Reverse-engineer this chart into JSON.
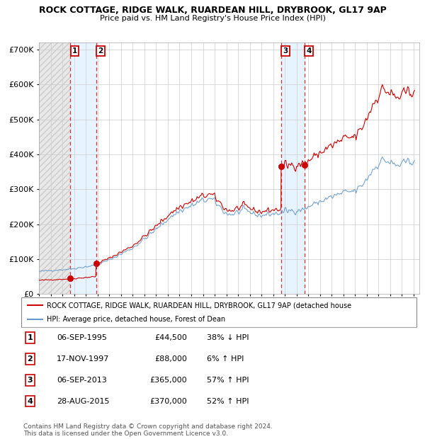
{
  "title": "ROCK COTTAGE, RIDGE WALK, RUARDEAN HILL, DRYBROOK, GL17 9AP",
  "subtitle": "Price paid vs. HM Land Registry's House Price Index (HPI)",
  "ylim": [
    0,
    720000
  ],
  "yticks": [
    0,
    100000,
    200000,
    300000,
    400000,
    500000,
    600000,
    700000
  ],
  "ytick_labels": [
    "£0",
    "£100K",
    "£200K",
    "£300K",
    "£400K",
    "£500K",
    "£600K",
    "£700K"
  ],
  "xlim_start": 1993.0,
  "xlim_end": 2025.5,
  "sales": [
    {
      "date": 1995.68,
      "price": 44500,
      "label": "1"
    },
    {
      "date": 1997.88,
      "price": 88000,
      "label": "2"
    },
    {
      "date": 2013.68,
      "price": 365000,
      "label": "3"
    },
    {
      "date": 2015.66,
      "price": 370000,
      "label": "4"
    }
  ],
  "table_rows": [
    {
      "num": "1",
      "date": "06-SEP-1995",
      "price": "£44,500",
      "pct": "38% ↓ HPI"
    },
    {
      "num": "2",
      "date": "17-NOV-1997",
      "price": "£88,000",
      "pct": "6% ↑ HPI"
    },
    {
      "num": "3",
      "date": "06-SEP-2013",
      "price": "£365,000",
      "pct": "57% ↑ HPI"
    },
    {
      "num": "4",
      "date": "28-AUG-2015",
      "price": "£370,000",
      "pct": "52% ↑ HPI"
    }
  ],
  "legend_line1": "ROCK COTTAGE, RIDGE WALK, RUARDEAN HILL, DRYBROOK, GL17 9AP (detached house",
  "legend_line2": "HPI: Average price, detached house, Forest of Dean",
  "footer_line1": "Contains HM Land Registry data © Crown copyright and database right 2024.",
  "footer_line2": "This data is licensed under the Open Government Licence v3.0.",
  "line_color": "#cc0000",
  "hpi_color": "#6699cc",
  "sale_marker_color": "#cc0000"
}
